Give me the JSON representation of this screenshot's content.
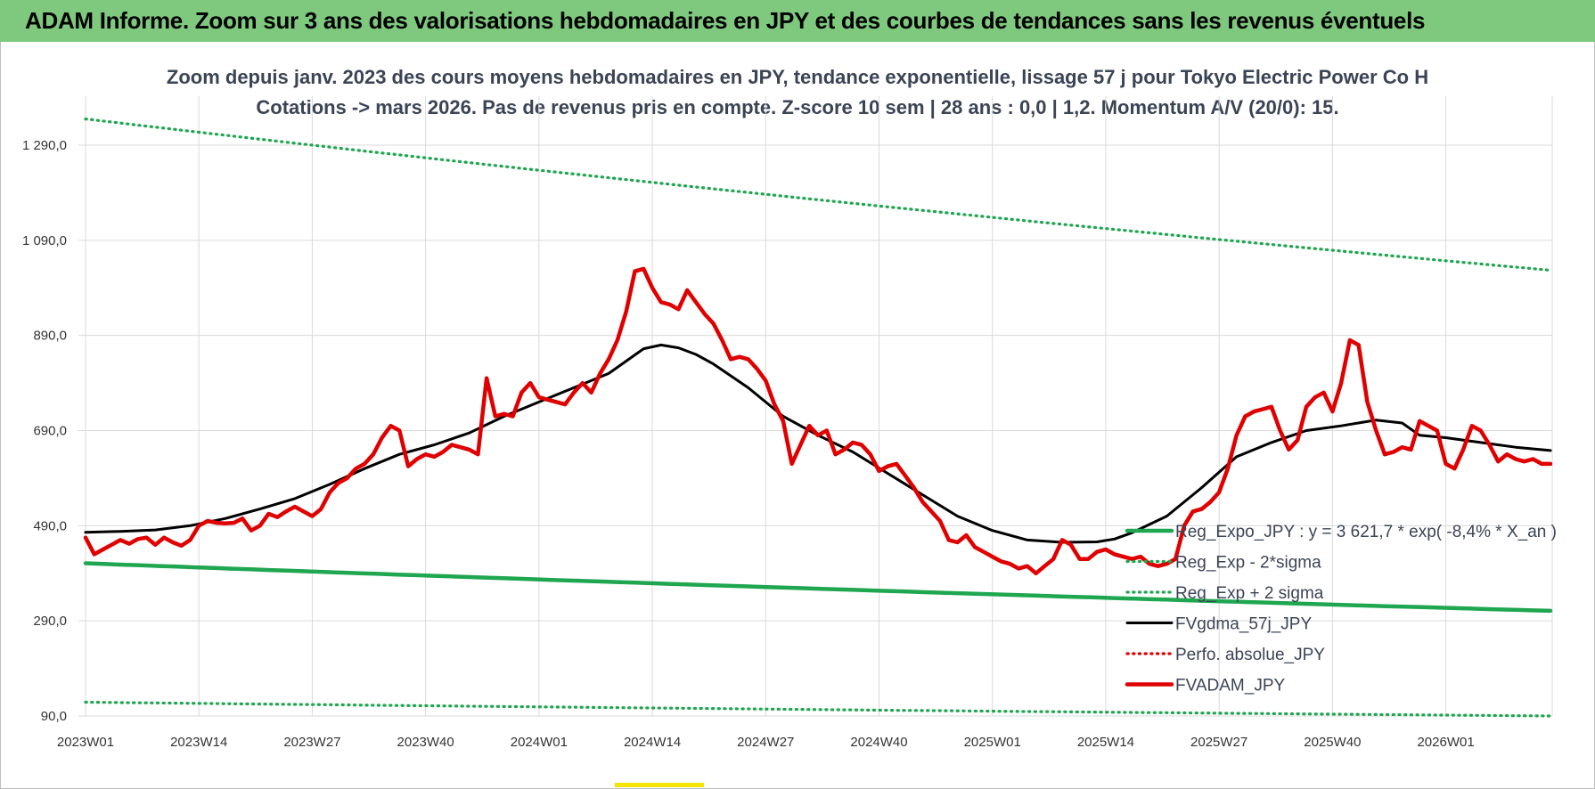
{
  "banner": {
    "title": "ADAM Informe. Zoom sur 3 ans des valorisations hebdomadaires en JPY et des courbes de tendances sans les revenus éventuels"
  },
  "chart_data": {
    "type": "line",
    "title": "Zoom depuis janv. 2023 des cours moyens hebdomadaires en JPY, tendance exponentielle, lissage 57 j pour Tokyo Electric Power Co H",
    "subtitle": "Cotations -> mars 2026. Pas de revenus pris en compte. Z-score 10 sem | 28 ans : 0,0 | 1,2. Momentum A/V (20/0): 15.",
    "xlabel": "",
    "ylabel": "",
    "ylim": [
      90,
      1400
    ],
    "y_ticks": [
      "1 290,0",
      "1 090,0",
      "890,0",
      "690,0",
      "490,0",
      "290,0",
      "90,0"
    ],
    "y_tick_values": [
      1290,
      1090,
      890,
      690,
      490,
      290,
      90
    ],
    "x_ticks": [
      "2023W01",
      "2023W14",
      "2023W27",
      "2023W40",
      "2024W01",
      "2024W14",
      "2024W27",
      "2024W40",
      "2025W01",
      "2025W14",
      "2025W27",
      "2025W40",
      "2026W01"
    ],
    "x_tick_weeks": [
      0,
      13,
      26,
      39,
      52,
      65,
      78,
      91,
      104,
      117,
      130,
      143,
      156
    ],
    "n_weeks": 169,
    "grid": true,
    "legend_position": "bottom-right",
    "colors": {
      "reg_expo": "#1fa650",
      "reg_sigma": "#1fa650",
      "fvgdma": "#000000",
      "perfo": "#e00000",
      "fvadam": "#e00000"
    },
    "series": [
      {
        "name": "Reg_Expo_JPY : y = 3 621,7 * exp( -8,4% *  X_an )",
        "key": "reg_expo",
        "style": "solid-thick",
        "x": [
          0,
          168
        ],
        "y": [
          411,
          311
        ]
      },
      {
        "name": "Reg_Exp - 2*sigma",
        "key": "reg_sigma",
        "style": "dotted",
        "x": [
          0,
          168
        ],
        "y": [
          119,
          90
        ]
      },
      {
        "name": "Reg_Exp + 2 sigma",
        "key": "reg_sigma",
        "style": "dotted",
        "x": [
          0,
          168
        ],
        "y": [
          1345,
          1027
        ]
      },
      {
        "name": "FVgdma_57j_JPY",
        "key": "fvgdma",
        "style": "solid",
        "x": [
          0,
          4,
          8,
          12,
          16,
          20,
          24,
          28,
          32,
          36,
          40,
          44,
          48,
          52,
          56,
          60,
          64,
          66,
          68,
          70,
          72,
          76,
          80,
          84,
          88,
          92,
          96,
          100,
          104,
          108,
          112,
          116,
          118,
          120,
          124,
          128,
          132,
          136,
          140,
          144,
          148,
          151,
          153,
          156,
          160,
          164,
          168
        ],
        "y": [
          476,
          478,
          481,
          490,
          505,
          525,
          547,
          577,
          610,
          640,
          660,
          685,
          720,
          750,
          780,
          810,
          862,
          870,
          864,
          850,
          830,
          780,
          720,
          680,
          645,
          600,
          555,
          510,
          480,
          460,
          455,
          456,
          462,
          475,
          510,
          570,
          635,
          665,
          690,
          700,
          712,
          706,
          680,
          675,
          665,
          655,
          648
        ]
      },
      {
        "name": "Perfo. absolue_JPY",
        "key": "perfo",
        "style": "dotted",
        "x": [],
        "y": []
      },
      {
        "name": "FVADAM_JPY",
        "key": "fvadam",
        "style": "solid-thick",
        "x": [
          0,
          1,
          2,
          3,
          4,
          5,
          6,
          7,
          8,
          9,
          10,
          11,
          12,
          13,
          14,
          15,
          16,
          17,
          18,
          19,
          20,
          21,
          22,
          23,
          24,
          25,
          26,
          27,
          28,
          29,
          30,
          31,
          32,
          33,
          34,
          35,
          36,
          37,
          38,
          39,
          40,
          41,
          42,
          43,
          44,
          45,
          46,
          47,
          48,
          49,
          50,
          51,
          52,
          53,
          54,
          55,
          56,
          57,
          58,
          59,
          60,
          61,
          62,
          63,
          64,
          65,
          66,
          67,
          68,
          69,
          70,
          71,
          72,
          73,
          74,
          75,
          76,
          77,
          78,
          79,
          80,
          81,
          82,
          83,
          84,
          85,
          86,
          87,
          88,
          89,
          90,
          91,
          92,
          93,
          94,
          95,
          96,
          97,
          98,
          99,
          100,
          101,
          102,
          103,
          104,
          105,
          106,
          107,
          108,
          109,
          110,
          111,
          112,
          113,
          114,
          115,
          116,
          117,
          118,
          119,
          120,
          121,
          122,
          123,
          124,
          125,
          126,
          127,
          128,
          129,
          130,
          131,
          132,
          133,
          134,
          135,
          136,
          137,
          138,
          139,
          140,
          141,
          142,
          143,
          144,
          145,
          146,
          147,
          148,
          149,
          150,
          151,
          152,
          153,
          154,
          155,
          156,
          157,
          158,
          159,
          160,
          161,
          162,
          163,
          164,
          165,
          166,
          167,
          168
        ],
        "y": [
          465,
          430,
          440,
          450,
          460,
          452,
          462,
          465,
          450,
          465,
          455,
          448,
          460,
          490,
          500,
          496,
          495,
          496,
          505,
          480,
          490,
          515,
          508,
          520,
          530,
          520,
          510,
          525,
          560,
          580,
          590,
          610,
          620,
          640,
          675,
          700,
          690,
          615,
          630,
          640,
          635,
          645,
          660,
          655,
          650,
          640,
          800,
          720,
          725,
          720,
          770,
          790,
          760,
          755,
          750,
          745,
          770,
          790,
          770,
          810,
          840,
          880,
          940,
          1025,
          1030,
          990,
          960,
          955,
          945,
          985,
          960,
          935,
          915,
          880,
          840,
          845,
          840,
          820,
          795,
          745,
          710,
          620,
          660,
          700,
          680,
          690,
          640,
          650,
          665,
          660,
          640,
          605,
          615,
          620,
          595,
          570,
          540,
          520,
          500,
          460,
          455,
          470,
          445,
          435,
          425,
          415,
          410,
          400,
          405,
          390,
          405,
          420,
          460,
          450,
          420,
          420,
          435,
          440,
          430,
          425,
          420,
          425,
          410,
          405,
          410,
          420,
          490,
          520,
          525,
          540,
          560,
          610,
          680,
          720,
          730,
          735,
          740,
          690,
          650,
          670,
          740,
          760,
          770,
          730,
          790,
          880,
          870,
          750,
          690,
          640,
          645,
          655,
          650,
          710,
          700,
          690,
          620,
          610,
          650,
          700,
          690,
          660,
          625,
          640,
          630,
          625,
          630,
          620,
          620
        ]
      }
    ]
  },
  "legend": {
    "items": [
      {
        "label": "Reg_Expo_JPY : y = 3 621,7 * exp( -8,4% *  X_an )",
        "color": "#1fa650",
        "style": "solid-thick"
      },
      {
        "label": "Reg_Exp - 2*sigma",
        "color": "#1fa650",
        "style": "dotted"
      },
      {
        "label": "Reg_Exp + 2 sigma",
        "color": "#1fa650",
        "style": "dotted"
      },
      {
        "label": "FVgdma_57j_JPY",
        "color": "#000000",
        "style": "solid"
      },
      {
        "label": "Perfo. absolue_JPY",
        "color": "#e00000",
        "style": "dotted"
      },
      {
        "label": "FVADAM_JPY",
        "color": "#e00000",
        "style": "solid-thick"
      }
    ]
  }
}
